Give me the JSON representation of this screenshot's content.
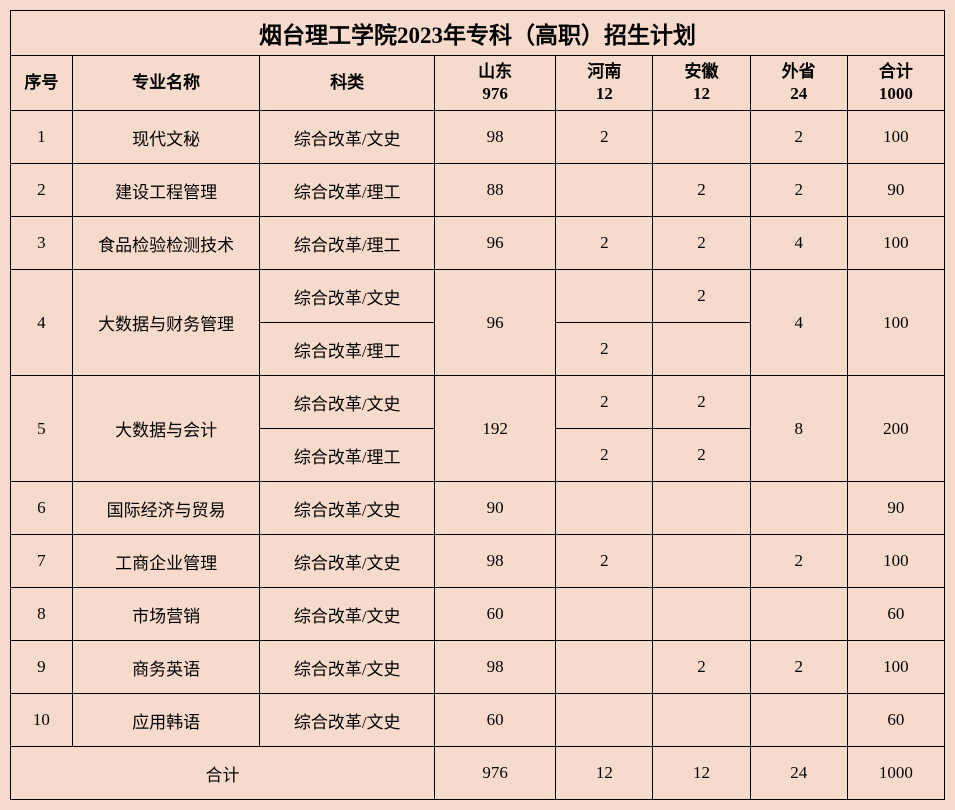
{
  "title": "烟台理工学院2023年专科（高职）招生计划",
  "headers": {
    "seq": "序号",
    "major": "专业名称",
    "category": "科类",
    "shandong": "山东",
    "shandong_n": "976",
    "henan": "河南",
    "henan_n": "12",
    "anhui": "安徽",
    "anhui_n": "12",
    "outside": "外省",
    "outside_n": "24",
    "total": "合计",
    "total_n": "1000"
  },
  "rows": {
    "r1": {
      "seq": "1",
      "major": "现代文秘",
      "cat": "综合改革/文史",
      "sd": "98",
      "hn": "2",
      "ah": "",
      "ws": "2",
      "hj": "100"
    },
    "r2": {
      "seq": "2",
      "major": "建设工程管理",
      "cat": "综合改革/理工",
      "sd": "88",
      "hn": "",
      "ah": "2",
      "ws": "2",
      "hj": "90"
    },
    "r3": {
      "seq": "3",
      "major": "食品检验检测技术",
      "cat": "综合改革/理工",
      "sd": "96",
      "hn": "2",
      "ah": "2",
      "ws": "4",
      "hj": "100"
    },
    "r4": {
      "seq": "4",
      "major": "大数据与财务管理",
      "cat1": "综合改革/文史",
      "cat2": "综合改革/理工",
      "sd": "96",
      "hn1": "",
      "ah1": "2",
      "hn2": "2",
      "ah2": "",
      "ws": "4",
      "hj": "100"
    },
    "r5": {
      "seq": "5",
      "major": "大数据与会计",
      "cat1": "综合改革/文史",
      "cat2": "综合改革/理工",
      "sd": "192",
      "hn1": "2",
      "ah1": "2",
      "hn2": "2",
      "ah2": "2",
      "ws": "8",
      "hj": "200"
    },
    "r6": {
      "seq": "6",
      "major": "国际经济与贸易",
      "cat": "综合改革/文史",
      "sd": "90",
      "hn": "",
      "ah": "",
      "ws": "",
      "hj": "90"
    },
    "r7": {
      "seq": "7",
      "major": "工商企业管理",
      "cat": "综合改革/文史",
      "sd": "98",
      "hn": "2",
      "ah": "",
      "ws": "2",
      "hj": "100"
    },
    "r8": {
      "seq": "8",
      "major": "市场营销",
      "cat": "综合改革/文史",
      "sd": "60",
      "hn": "",
      "ah": "",
      "ws": "",
      "hj": "60"
    },
    "r9": {
      "seq": "9",
      "major": "商务英语",
      "cat": "综合改革/文史",
      "sd": "98",
      "hn": "",
      "ah": "2",
      "ws": "2",
      "hj": "100"
    },
    "r10": {
      "seq": "10",
      "major": "应用韩语",
      "cat": "综合改革/文史",
      "sd": "60",
      "hn": "",
      "ah": "",
      "ws": "",
      "hj": "60"
    }
  },
  "totals": {
    "label": "合计",
    "sd": "976",
    "hn": "12",
    "ah": "12",
    "ws": "24",
    "hj": "1000"
  },
  "colors": {
    "background": "#f6dbcc",
    "border": "#000000",
    "text": "#000000"
  },
  "font": {
    "family": "SimSun",
    "title_size": 23,
    "header_size": 17,
    "cell_size": 17
  }
}
